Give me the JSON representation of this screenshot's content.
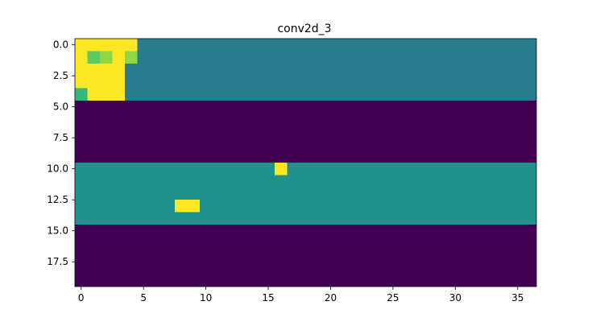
{
  "chart_data": {
    "type": "heatmap",
    "title": "conv2d_3",
    "xlabel": "",
    "ylabel": "",
    "n_rows": 20,
    "n_cols": 37,
    "x_ticks": [
      0,
      5,
      10,
      15,
      20,
      25,
      30,
      35
    ],
    "x_tick_labels": [
      "0",
      "5",
      "10",
      "15",
      "20",
      "25",
      "30",
      "35"
    ],
    "y_ticks": [
      0,
      2.5,
      5,
      7.5,
      10,
      12.5,
      15,
      17.5
    ],
    "y_tick_labels": [
      "0.0",
      "2.5",
      "5.0",
      "7.5",
      "10.0",
      "12.5",
      "15.0",
      "17.5"
    ],
    "xlim": [
      -0.5,
      36.5
    ],
    "ylim": [
      19.5,
      -0.5
    ],
    "colormap": "viridis",
    "colors": {
      "yellow": "#fde725",
      "light_green": "#8fd744",
      "green": "#5ec962",
      "mid_green": "#35b779",
      "teal_dark": "#287c8e",
      "teal": "#21918c",
      "purple": "#440154"
    },
    "bands": [
      {
        "rows": [
          0,
          4
        ],
        "color": "teal_dark"
      },
      {
        "rows": [
          5,
          9
        ],
        "color": "purple"
      },
      {
        "rows": [
          10,
          14
        ],
        "color": "teal"
      },
      {
        "rows": [
          15,
          19
        ],
        "color": "purple"
      }
    ],
    "highlights": [
      {
        "row": 0,
        "cols": [
          0,
          4
        ],
        "color": "yellow"
      },
      {
        "row": 1,
        "cols": [
          0,
          0
        ],
        "color": "yellow"
      },
      {
        "row": 1,
        "cols": [
          1,
          1
        ],
        "color": "green"
      },
      {
        "row": 1,
        "cols": [
          2,
          2
        ],
        "color": "light_green"
      },
      {
        "row": 1,
        "cols": [
          3,
          3
        ],
        "color": "yellow"
      },
      {
        "row": 1,
        "cols": [
          4,
          4
        ],
        "color": "light_green"
      },
      {
        "row": 2,
        "cols": [
          0,
          3
        ],
        "color": "yellow"
      },
      {
        "row": 3,
        "cols": [
          0,
          3
        ],
        "color": "yellow"
      },
      {
        "row": 4,
        "cols": [
          0,
          0
        ],
        "color": "mid_green"
      },
      {
        "row": 4,
        "cols": [
          1,
          3
        ],
        "color": "yellow"
      },
      {
        "row": 10,
        "cols": [
          16,
          16
        ],
        "color": "yellow"
      },
      {
        "row": 13,
        "cols": [
          8,
          9
        ],
        "color": "yellow"
      }
    ]
  }
}
